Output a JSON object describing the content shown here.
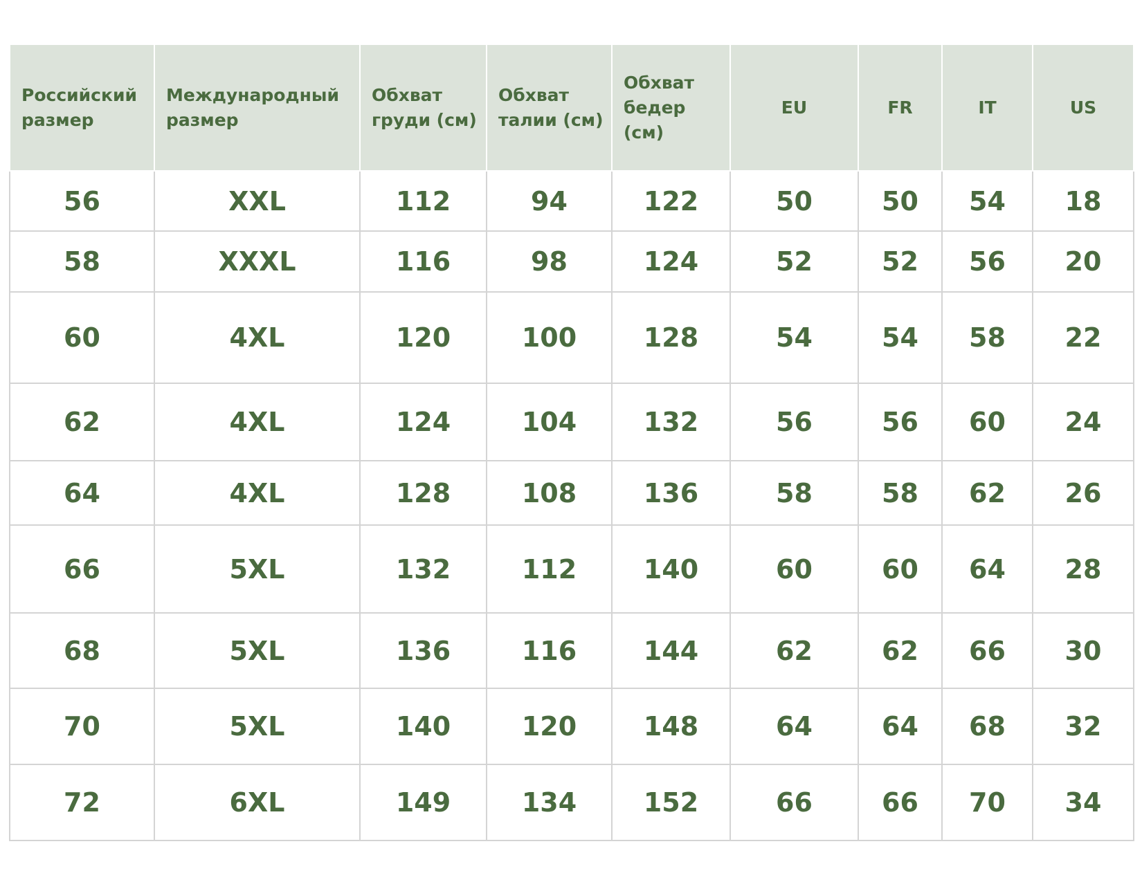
{
  "table": {
    "header": [
      "Российский размер",
      "Международный размер",
      "Обхват груди (см)",
      "Обхват талии (см)",
      "Обхват бедер (см)",
      "EU",
      "FR",
      "IT",
      "US"
    ],
    "rows": [
      [
        56,
        "XXL",
        112,
        94,
        122,
        50,
        50,
        54,
        18
      ],
      [
        58,
        "XXXL",
        116,
        98,
        124,
        52,
        52,
        56,
        20
      ],
      [
        60,
        "4XL",
        120,
        100,
        128,
        54,
        54,
        58,
        22
      ],
      [
        62,
        "4XL",
        124,
        104,
        132,
        56,
        56,
        60,
        24
      ],
      [
        64,
        "4XL",
        128,
        108,
        136,
        58,
        58,
        62,
        26
      ],
      [
        66,
        "5XL",
        132,
        112,
        140,
        60,
        60,
        64,
        28
      ],
      [
        68,
        "5XL",
        136,
        116,
        144,
        62,
        62,
        66,
        30
      ],
      [
        70,
        "5XL",
        140,
        120,
        148,
        64,
        64,
        68,
        32
      ],
      [
        72,
        "6XL",
        149,
        134,
        152,
        66,
        66,
        70,
        34
      ]
    ]
  }
}
